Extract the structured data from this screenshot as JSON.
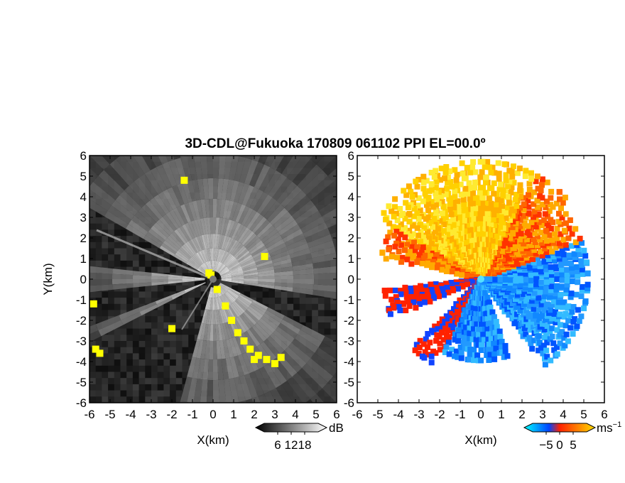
{
  "title": "3D-CDL@Fukuoka 170809 061102 PPI EL=00.0º",
  "colors": {
    "background": "#ffffff",
    "frame": "#000000",
    "clutter": "#ffff00"
  },
  "chart_data": [
    {
      "type": "heatmap",
      "panel": "left",
      "quantity": "SNR",
      "xlabel": "X(km)",
      "ylabel": "Y(km)",
      "xlim": [
        -6,
        6
      ],
      "ylim": [
        -6,
        6
      ],
      "xticks": [
        "-6",
        "-5",
        "-4",
        "-3",
        "-2",
        "-1",
        "0",
        "1",
        "2",
        "3",
        "4",
        "5",
        "6"
      ],
      "yticks": [
        "6",
        "5",
        "4",
        "3",
        "2",
        "1",
        "0",
        "-1",
        "-2",
        "-3",
        "-4",
        "-5",
        "-6"
      ],
      "colorbar": {
        "unit": "dB",
        "ticks": [
          "6",
          "12",
          "18"
        ],
        "range": [
          0,
          24
        ],
        "colors": [
          "#000000",
          "#ffffff"
        ]
      },
      "blocked_sectors_deg": [
        [
          -28,
          -8
        ],
        [
          150,
          175
        ],
        [
          185,
          202
        ],
        [
          206,
          255
        ]
      ],
      "clutter_color": "#ffff00"
    },
    {
      "type": "heatmap",
      "panel": "right",
      "quantity": "Doppler velocity",
      "xlabel": "X(km)",
      "xlim": [
        -6,
        6
      ],
      "ylim": [
        -6,
        6
      ],
      "xticks": [
        "-6",
        "-5",
        "-4",
        "-3",
        "-2",
        "-1",
        "0",
        "1",
        "2",
        "3",
        "4",
        "5",
        "6"
      ],
      "yticks": [
        "6",
        "5",
        "4",
        "3",
        "2",
        "1",
        "0",
        "-1",
        "-2",
        "-3",
        "-4",
        "-5",
        "-6"
      ],
      "colorbar": {
        "unit": "ms",
        "unit_exp": "−1",
        "ticks": [
          "−5",
          "0",
          "5"
        ],
        "range": [
          -6,
          6
        ],
        "colors": [
          "#00ffff",
          "#0044ff",
          "#ff2200",
          "#ffdd00"
        ]
      }
    }
  ]
}
